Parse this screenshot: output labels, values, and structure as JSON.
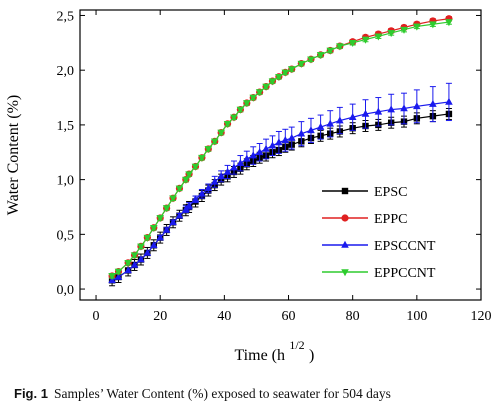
{
  "chart_data": {
    "type": "line",
    "xlabel": "Time (h",
    "xlabel_superscript": "1/2",
    "xlabel_suffix": ")",
    "ylabel": "Water Content (%)",
    "xlim": [
      -5,
      120
    ],
    "ylim": [
      -0.1,
      2.55
    ],
    "xticks": [
      "0",
      "20",
      "40",
      "60",
      "80",
      "100",
      "120"
    ],
    "yticks": [
      "0,0",
      "0,5",
      "1,0",
      "1,5",
      "2,0",
      "2,5"
    ],
    "legend_position": "center-right",
    "series": [
      {
        "name": "EPSC",
        "color": "#000000",
        "marker": "square",
        "x": [
          5,
          7,
          10,
          12,
          14,
          16,
          18,
          20,
          22,
          24,
          26,
          28,
          29,
          31,
          33,
          35,
          37,
          39,
          41,
          43,
          45,
          47,
          49,
          51,
          53,
          55,
          57,
          59,
          61,
          64,
          67,
          70,
          73,
          76,
          80,
          84,
          88,
          92,
          96,
          100,
          105,
          110
        ],
        "y": [
          0.08,
          0.11,
          0.17,
          0.22,
          0.27,
          0.33,
          0.4,
          0.47,
          0.54,
          0.61,
          0.67,
          0.72,
          0.75,
          0.8,
          0.85,
          0.9,
          0.95,
          1.0,
          1.03,
          1.07,
          1.1,
          1.14,
          1.17,
          1.2,
          1.22,
          1.25,
          1.27,
          1.3,
          1.32,
          1.35,
          1.38,
          1.4,
          1.42,
          1.44,
          1.47,
          1.49,
          1.5,
          1.52,
          1.53,
          1.56,
          1.58,
          1.6
        ],
        "error": 0.05
      },
      {
        "name": "EPPC",
        "color": "#e02020",
        "marker": "circle",
        "x": [
          5,
          7,
          10,
          12,
          14,
          16,
          18,
          20,
          22,
          24,
          26,
          28,
          29,
          31,
          33,
          35,
          37,
          39,
          41,
          43,
          45,
          47,
          49,
          51,
          53,
          55,
          57,
          59,
          61,
          64,
          67,
          70,
          73,
          76,
          80,
          84,
          88,
          92,
          96,
          100,
          105,
          110
        ],
        "y": [
          0.12,
          0.16,
          0.24,
          0.31,
          0.39,
          0.47,
          0.56,
          0.65,
          0.74,
          0.83,
          0.92,
          1.0,
          1.05,
          1.12,
          1.2,
          1.28,
          1.35,
          1.43,
          1.51,
          1.57,
          1.64,
          1.7,
          1.75,
          1.8,
          1.85,
          1.9,
          1.94,
          1.98,
          2.01,
          2.06,
          2.1,
          2.14,
          2.18,
          2.22,
          2.26,
          2.3,
          2.33,
          2.36,
          2.39,
          2.42,
          2.45,
          2.47
        ],
        "error": 0.02
      },
      {
        "name": "EPSCCNT",
        "color": "#1a1aee",
        "marker": "triangle-up",
        "x": [
          5,
          7,
          10,
          12,
          14,
          16,
          18,
          20,
          22,
          24,
          26,
          28,
          29,
          31,
          33,
          35,
          37,
          39,
          41,
          43,
          45,
          47,
          49,
          51,
          53,
          55,
          57,
          59,
          61,
          64,
          67,
          70,
          73,
          76,
          80,
          84,
          88,
          92,
          96,
          100,
          105,
          110
        ],
        "y": [
          0.08,
          0.11,
          0.17,
          0.22,
          0.27,
          0.33,
          0.4,
          0.47,
          0.54,
          0.61,
          0.67,
          0.73,
          0.76,
          0.82,
          0.87,
          0.92,
          0.98,
          1.03,
          1.07,
          1.11,
          1.15,
          1.19,
          1.22,
          1.25,
          1.28,
          1.31,
          1.34,
          1.36,
          1.38,
          1.42,
          1.45,
          1.48,
          1.51,
          1.54,
          1.57,
          1.6,
          1.62,
          1.64,
          1.65,
          1.67,
          1.69,
          1.71
        ],
        "error": [
          0.01,
          0.01,
          0.01,
          0.01,
          0.01,
          0.01,
          0.01,
          0.02,
          0.02,
          0.02,
          0.02,
          0.03,
          0.03,
          0.03,
          0.04,
          0.04,
          0.05,
          0.05,
          0.06,
          0.06,
          0.07,
          0.07,
          0.08,
          0.08,
          0.09,
          0.09,
          0.1,
          0.1,
          0.1,
          0.11,
          0.11,
          0.11,
          0.12,
          0.12,
          0.12,
          0.13,
          0.13,
          0.14,
          0.14,
          0.15,
          0.16,
          0.17
        ]
      },
      {
        "name": "EPPCCNT",
        "color": "#2ecc2e",
        "marker": "triangle-down",
        "x": [
          5,
          7,
          10,
          12,
          14,
          16,
          18,
          20,
          22,
          24,
          26,
          28,
          29,
          31,
          33,
          35,
          37,
          39,
          41,
          43,
          45,
          47,
          49,
          51,
          53,
          55,
          57,
          59,
          61,
          64,
          67,
          70,
          73,
          76,
          80,
          84,
          88,
          92,
          96,
          100,
          105,
          110
        ],
        "y": [
          0.12,
          0.16,
          0.24,
          0.31,
          0.39,
          0.47,
          0.56,
          0.65,
          0.74,
          0.83,
          0.92,
          1.0,
          1.05,
          1.12,
          1.2,
          1.28,
          1.35,
          1.43,
          1.51,
          1.57,
          1.64,
          1.7,
          1.75,
          1.8,
          1.85,
          1.9,
          1.94,
          1.98,
          2.01,
          2.06,
          2.1,
          2.14,
          2.18,
          2.22,
          2.25,
          2.28,
          2.31,
          2.34,
          2.37,
          2.4,
          2.42,
          2.44
        ],
        "error": 0.02
      }
    ]
  },
  "caption": {
    "label": "Fig. 1",
    "text": "Samples’ Water Content (%) exposed to seawater for 504 days"
  }
}
